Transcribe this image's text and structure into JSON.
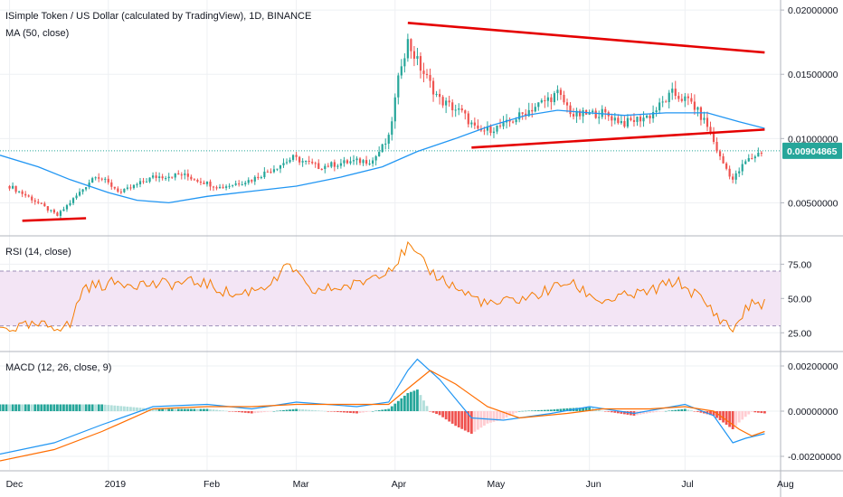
{
  "chart_data": [
    {
      "type": "candlestick",
      "title": "ISimple Token / US Dollar (calculated by TradingView), 1D, BINANCE",
      "indicator": "MA (50, close)",
      "last_price": 0.00904865,
      "last_price_label": "0.00904865",
      "ylim": [
        0.0025,
        0.0205
      ],
      "y_ticks": [
        0.005,
        0.01,
        0.015,
        0.02
      ],
      "y_tick_labels": [
        "0.00500000",
        "0.01000000",
        "0.01500000",
        "0.02000000"
      ],
      "close_series": [
        {
          "date": "2018-12-01",
          "v": 0.0063
        },
        {
          "date": "2018-12-08",
          "v": 0.0053
        },
        {
          "date": "2018-12-16",
          "v": 0.004
        },
        {
          "date": "2018-12-23",
          "v": 0.0058
        },
        {
          "date": "2018-12-28",
          "v": 0.0072
        },
        {
          "date": "2019-01-05",
          "v": 0.0058
        },
        {
          "date": "2019-01-15",
          "v": 0.007
        },
        {
          "date": "2019-01-24",
          "v": 0.0072
        },
        {
          "date": "2019-02-05",
          "v": 0.0062
        },
        {
          "date": "2019-02-15",
          "v": 0.0068
        },
        {
          "date": "2019-02-28",
          "v": 0.0085
        },
        {
          "date": "2019-03-08",
          "v": 0.0078
        },
        {
          "date": "2019-03-18",
          "v": 0.0082
        },
        {
          "date": "2019-03-25",
          "v": 0.0083
        },
        {
          "date": "2019-03-30",
          "v": 0.01
        },
        {
          "date": "2019-04-03",
          "v": 0.016
        },
        {
          "date": "2019-04-05",
          "v": 0.0175
        },
        {
          "date": "2019-04-09",
          "v": 0.0155
        },
        {
          "date": "2019-04-15",
          "v": 0.013
        },
        {
          "date": "2019-04-22",
          "v": 0.012
        },
        {
          "date": "2019-04-27",
          "v": 0.0105
        },
        {
          "date": "2019-05-05",
          "v": 0.011
        },
        {
          "date": "2019-05-15",
          "v": 0.0125
        },
        {
          "date": "2019-05-22",
          "v": 0.0135
        },
        {
          "date": "2019-05-27",
          "v": 0.0118
        },
        {
          "date": "2019-06-05",
          "v": 0.012
        },
        {
          "date": "2019-06-12",
          "v": 0.0112
        },
        {
          "date": "2019-06-20",
          "v": 0.0118
        },
        {
          "date": "2019-06-27",
          "v": 0.0135
        },
        {
          "date": "2019-07-03",
          "v": 0.0128
        },
        {
          "date": "2019-07-08",
          "v": 0.011
        },
        {
          "date": "2019-07-12",
          "v": 0.0085
        },
        {
          "date": "2019-07-16",
          "v": 0.0068
        },
        {
          "date": "2019-07-20",
          "v": 0.0082
        },
        {
          "date": "2019-07-25",
          "v": 0.009
        }
      ],
      "ma_series": [
        {
          "date": "2018-11-28",
          "v": 0.0087
        },
        {
          "date": "2018-12-10",
          "v": 0.0078
        },
        {
          "date": "2018-12-20",
          "v": 0.0068
        },
        {
          "date": "2019-01-01",
          "v": 0.0058
        },
        {
          "date": "2019-01-10",
          "v": 0.0052
        },
        {
          "date": "2019-01-20",
          "v": 0.005
        },
        {
          "date": "2019-02-01",
          "v": 0.0055
        },
        {
          "date": "2019-02-15",
          "v": 0.0059
        },
        {
          "date": "2019-03-01",
          "v": 0.0063
        },
        {
          "date": "2019-03-15",
          "v": 0.007
        },
        {
          "date": "2019-03-28",
          "v": 0.0078
        },
        {
          "date": "2019-04-08",
          "v": 0.009
        },
        {
          "date": "2019-04-20",
          "v": 0.01
        },
        {
          "date": "2019-05-01",
          "v": 0.011
        },
        {
          "date": "2019-05-12",
          "v": 0.0118
        },
        {
          "date": "2019-05-22",
          "v": 0.0122
        },
        {
          "date": "2019-06-01",
          "v": 0.012
        },
        {
          "date": "2019-06-12",
          "v": 0.0118
        },
        {
          "date": "2019-06-25",
          "v": 0.012
        },
        {
          "date": "2019-07-08",
          "v": 0.012
        },
        {
          "date": "2019-07-18",
          "v": 0.0113
        },
        {
          "date": "2019-07-26",
          "v": 0.0108
        }
      ],
      "trendlines": [
        {
          "from": {
            "date": "2019-04-05",
            "v": 0.019
          },
          "to": {
            "date": "2019-07-26",
            "v": 0.0167
          }
        },
        {
          "from": {
            "date": "2019-04-25",
            "v": 0.0093
          },
          "to": {
            "date": "2019-07-26",
            "v": 0.0107
          }
        },
        {
          "from": {
            "date": "2018-12-05",
            "v": 0.0036
          },
          "to": {
            "date": "2018-12-25",
            "v": 0.0038
          }
        }
      ]
    },
    {
      "type": "line",
      "title": "RSI (14, close)",
      "ylim": [
        12,
        95
      ],
      "band": [
        30,
        70
      ],
      "y_ticks": [
        25,
        50,
        75
      ],
      "y_tick_labels": [
        "25.00",
        "50.00",
        "75.00"
      ],
      "series": [
        {
          "date": "2018-11-28",
          "v": 28
        },
        {
          "date": "2018-12-10",
          "v": 30
        },
        {
          "date": "2018-12-20",
          "v": 30
        },
        {
          "date": "2018-12-24",
          "v": 58
        },
        {
          "date": "2019-01-05",
          "v": 62
        },
        {
          "date": "2019-01-15",
          "v": 60
        },
        {
          "date": "2019-01-30",
          "v": 62
        },
        {
          "date": "2019-02-10",
          "v": 52
        },
        {
          "date": "2019-02-22",
          "v": 62
        },
        {
          "date": "2019-02-27",
          "v": 75
        },
        {
          "date": "2019-03-05",
          "v": 55
        },
        {
          "date": "2019-03-20",
          "v": 60
        },
        {
          "date": "2019-04-01",
          "v": 75
        },
        {
          "date": "2019-04-05",
          "v": 88
        },
        {
          "date": "2019-04-12",
          "v": 70
        },
        {
          "date": "2019-04-22",
          "v": 55
        },
        {
          "date": "2019-05-01",
          "v": 45
        },
        {
          "date": "2019-05-15",
          "v": 52
        },
        {
          "date": "2019-05-25",
          "v": 62
        },
        {
          "date": "2019-06-05",
          "v": 48
        },
        {
          "date": "2019-06-20",
          "v": 55
        },
        {
          "date": "2019-06-28",
          "v": 63
        },
        {
          "date": "2019-07-05",
          "v": 52
        },
        {
          "date": "2019-07-10",
          "v": 40
        },
        {
          "date": "2019-07-16",
          "v": 27
        },
        {
          "date": "2019-07-21",
          "v": 45
        },
        {
          "date": "2019-07-26",
          "v": 47
        }
      ]
    },
    {
      "type": "macd",
      "title": "MACD (12, 26, close, 9)",
      "ylim": [
        -0.0026,
        0.0026
      ],
      "y_ticks": [
        -0.002,
        0.0,
        0.002
      ],
      "y_tick_labels": [
        "-0.00200000",
        "0.00000000",
        "0.00200000"
      ],
      "macd": [
        {
          "date": "2018-11-28",
          "v": -0.0019
        },
        {
          "date": "2018-12-15",
          "v": -0.0014
        },
        {
          "date": "2018-12-30",
          "v": -0.0006
        },
        {
          "date": "2019-01-15",
          "v": 0.0002
        },
        {
          "date": "2019-02-01",
          "v": 0.0003
        },
        {
          "date": "2019-02-15",
          "v": 0.0001
        },
        {
          "date": "2019-03-01",
          "v": 0.0004
        },
        {
          "date": "2019-03-20",
          "v": 0.0002
        },
        {
          "date": "2019-03-30",
          "v": 0.0004
        },
        {
          "date": "2019-04-05",
          "v": 0.0018
        },
        {
          "date": "2019-04-08",
          "v": 0.0023
        },
        {
          "date": "2019-04-15",
          "v": 0.0014
        },
        {
          "date": "2019-04-25",
          "v": -0.0003
        },
        {
          "date": "2019-05-05",
          "v": -0.0004
        },
        {
          "date": "2019-05-20",
          "v": -0.0001
        },
        {
          "date": "2019-06-01",
          "v": 0.0002
        },
        {
          "date": "2019-06-15",
          "v": -0.0001
        },
        {
          "date": "2019-07-01",
          "v": 0.0003
        },
        {
          "date": "2019-07-10",
          "v": -0.0002
        },
        {
          "date": "2019-07-16",
          "v": -0.0014
        },
        {
          "date": "2019-07-20",
          "v": -0.0012
        },
        {
          "date": "2019-07-26",
          "v": -0.001
        }
      ],
      "signal": [
        {
          "date": "2018-11-28",
          "v": -0.0022
        },
        {
          "date": "2018-12-15",
          "v": -0.0017
        },
        {
          "date": "2018-12-30",
          "v": -0.0009
        },
        {
          "date": "2019-01-15",
          "v": 0.0001
        },
        {
          "date": "2019-02-01",
          "v": 0.0002
        },
        {
          "date": "2019-02-15",
          "v": 0.0002
        },
        {
          "date": "2019-03-01",
          "v": 0.0003
        },
        {
          "date": "2019-03-20",
          "v": 0.0003
        },
        {
          "date": "2019-03-30",
          "v": 0.0003
        },
        {
          "date": "2019-04-05",
          "v": 0.001
        },
        {
          "date": "2019-04-12",
          "v": 0.0018
        },
        {
          "date": "2019-04-20",
          "v": 0.0012
        },
        {
          "date": "2019-04-30",
          "v": 0.0002
        },
        {
          "date": "2019-05-10",
          "v": -0.0003
        },
        {
          "date": "2019-05-25",
          "v": -0.0001
        },
        {
          "date": "2019-06-05",
          "v": 0.0001
        },
        {
          "date": "2019-06-20",
          "v": 0.0001
        },
        {
          "date": "2019-07-01",
          "v": 0.0002
        },
        {
          "date": "2019-07-10",
          "v": 0.0
        },
        {
          "date": "2019-07-18",
          "v": -0.0008
        },
        {
          "date": "2019-07-22",
          "v": -0.0011
        },
        {
          "date": "2019-07-26",
          "v": -0.0009
        }
      ]
    }
  ],
  "x_axis": {
    "start_date": "2018-11-28",
    "end_date": "2019-07-31",
    "labels": [
      {
        "date": "2018-12-01",
        "text": "Dec"
      },
      {
        "date": "2019-01-01",
        "text": "2019"
      },
      {
        "date": "2019-02-01",
        "text": "Feb"
      },
      {
        "date": "2019-03-01",
        "text": "Mar"
      },
      {
        "date": "2019-04-01",
        "text": "Apr"
      },
      {
        "date": "2019-05-01",
        "text": "May"
      },
      {
        "date": "2019-06-01",
        "text": "Jun"
      },
      {
        "date": "2019-07-01",
        "text": "Jul"
      },
      {
        "date": "2019-07-31",
        "text": "Aug"
      }
    ]
  },
  "colors": {
    "up": "#26a69a",
    "down": "#ef5350",
    "ma": "#2196f3",
    "rsi": "#f57c00",
    "rsi_band": "#f3e5f5",
    "macd": "#2196f3",
    "signal": "#ff6d00",
    "trendline": "#e50000",
    "price_tag": "#26a69a"
  }
}
